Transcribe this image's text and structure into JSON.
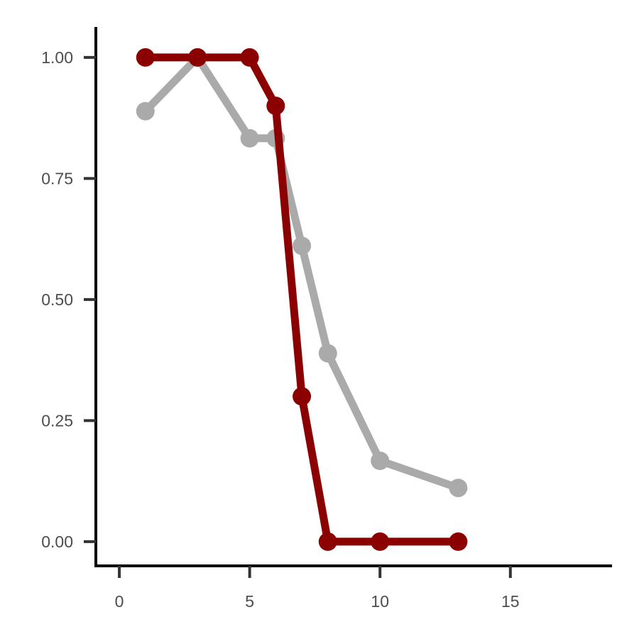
{
  "chart_data": {
    "type": "line",
    "title": "",
    "xlabel": "",
    "ylabel": "",
    "xlim": [
      -0.9,
      18.9
    ],
    "ylim": [
      -0.05,
      1.06
    ],
    "x_ticks": [
      0,
      5,
      10,
      15
    ],
    "x_tick_labels": [
      "0",
      "5",
      "10",
      "15"
    ],
    "y_ticks": [
      0,
      0.25,
      0.5,
      0.75,
      1.0
    ],
    "y_tick_labels": [
      "0.00",
      "0.25",
      "0.50",
      "0.75",
      "1.00"
    ],
    "grid": false,
    "legend": "none",
    "series": [
      {
        "color": "#aaaaaa",
        "x": [
          1,
          3,
          5,
          6,
          7,
          8,
          10,
          13
        ],
        "values": [
          0.889,
          1.0,
          0.833,
          0.833,
          0.611,
          0.389,
          0.167,
          0.111
        ]
      },
      {
        "color": "#8b0000",
        "x": [
          1,
          3,
          5,
          6,
          7,
          8,
          10,
          13
        ],
        "values": [
          1.0,
          1.0,
          1.0,
          0.9,
          0.3,
          0.0,
          0.0,
          0.0
        ]
      }
    ]
  }
}
